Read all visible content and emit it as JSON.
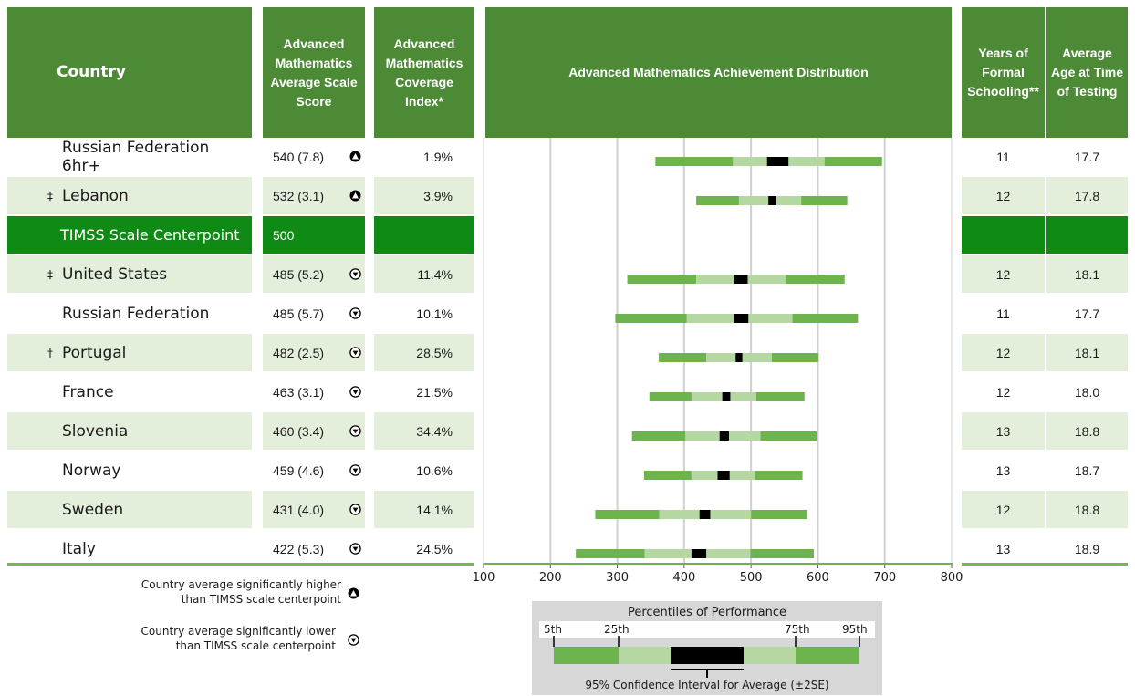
{
  "headers": {
    "country": "Country",
    "score": [
      "Advanced",
      "Mathematics",
      "Average Scale",
      "Score"
    ],
    "coverage": [
      "Advanced",
      "Mathematics",
      "Coverage",
      "Index*"
    ],
    "distribution": "Advanced Mathematics Achievement Distribution",
    "years": [
      "Years of",
      "Formal",
      "Schooling**"
    ],
    "age": [
      "Average",
      "Age at Time",
      "of Testing"
    ]
  },
  "rows": [
    {
      "mark": "",
      "country": "Russian Federation 6hr+",
      "score": "540 (7.8)",
      "sig": "higher",
      "coverage": "1.9%",
      "years": "11",
      "age": "17.7"
    },
    {
      "mark": "‡",
      "country": "Lebanon",
      "score": "532 (3.1)",
      "sig": "higher",
      "coverage": "3.9%",
      "years": "12",
      "age": "17.8"
    },
    {
      "mark": "",
      "country": "TIMSS Scale Centerpoint",
      "score": "500",
      "sig": "",
      "coverage": "",
      "years": "",
      "age": "",
      "centerpoint": true
    },
    {
      "mark": "‡",
      "country": "United States",
      "score": "485 (5.2)",
      "sig": "lower",
      "coverage": "11.4%",
      "years": "12",
      "age": "18.1"
    },
    {
      "mark": "",
      "country": "Russian Federation",
      "score": "485 (5.7)",
      "sig": "lower",
      "coverage": "10.1%",
      "years": "11",
      "age": "17.7"
    },
    {
      "mark": "†",
      "country": "Portugal",
      "score": "482 (2.5)",
      "sig": "lower",
      "coverage": "28.5%",
      "years": "12",
      "age": "18.1"
    },
    {
      "mark": "",
      "country": "France",
      "score": "463 (3.1)",
      "sig": "lower",
      "coverage": "21.5%",
      "years": "12",
      "age": "18.0"
    },
    {
      "mark": "",
      "country": "Slovenia",
      "score": "460 (3.4)",
      "sig": "lower",
      "coverage": "34.4%",
      "years": "13",
      "age": "18.8"
    },
    {
      "mark": "",
      "country": "Norway",
      "score": "459 (4.6)",
      "sig": "lower",
      "coverage": "10.6%",
      "years": "13",
      "age": "18.7"
    },
    {
      "mark": "",
      "country": "Sweden",
      "score": "431 (4.0)",
      "sig": "lower",
      "coverage": "14.1%",
      "years": "12",
      "age": "18.8"
    },
    {
      "mark": "",
      "country": "Italy",
      "score": "422 (5.3)",
      "sig": "lower",
      "coverage": "24.5%",
      "years": "13",
      "age": "18.9"
    }
  ],
  "legend": {
    "higher": [
      "Country average significantly higher",
      "than TIMSS scale centerpoint"
    ],
    "lower": [
      "Country average significantly lower",
      "than TIMSS scale centerpoint"
    ]
  },
  "percentile_legend": {
    "title": "Percentiles of Performance",
    "labels": [
      "5th",
      "25th",
      "75th",
      "95th"
    ],
    "ci_label": "95% Confidence Interval for Average (±2SE)"
  },
  "colors": {
    "header": "#4d8a36",
    "outer": "#6db44e",
    "inner": "#b5d8a2",
    "ci": "#000000",
    "center_row": "#0f8a14",
    "shade": "#e3eedb"
  },
  "chart_data": {
    "type": "bar",
    "title": "Advanced Mathematics Achievement Distribution",
    "xlim": [
      100,
      800
    ],
    "xticks": [
      100,
      200,
      300,
      400,
      500,
      600,
      700,
      800
    ],
    "grid": true,
    "series": [
      {
        "category": "Russian Federation 6hr+",
        "p5": 357,
        "p25": 473,
        "ci_low": 524,
        "ci_high": 556,
        "p75": 610,
        "p95": 696
      },
      {
        "category": "Lebanon",
        "p5": 418,
        "p25": 482,
        "ci_low": 526,
        "ci_high": 538,
        "p75": 575,
        "p95": 644
      },
      {
        "category": "United States",
        "p5": 315,
        "p25": 418,
        "ci_low": 475,
        "ci_high": 495,
        "p75": 552,
        "p95": 640
      },
      {
        "category": "Russian Federation",
        "p5": 297,
        "p25": 404,
        "ci_low": 474,
        "ci_high": 496,
        "p75": 562,
        "p95": 660
      },
      {
        "category": "Portugal",
        "p5": 362,
        "p25": 433,
        "ci_low": 477,
        "ci_high": 487,
        "p75": 531,
        "p95": 601
      },
      {
        "category": "France",
        "p5": 348,
        "p25": 411,
        "ci_low": 457,
        "ci_high": 469,
        "p75": 508,
        "p95": 580
      },
      {
        "category": "Slovenia",
        "p5": 322,
        "p25": 402,
        "ci_low": 453,
        "ci_high": 467,
        "p75": 514,
        "p95": 598
      },
      {
        "category": "Norway",
        "p5": 340,
        "p25": 411,
        "ci_low": 450,
        "ci_high": 468,
        "p75": 506,
        "p95": 577
      },
      {
        "category": "Sweden",
        "p5": 267,
        "p25": 363,
        "ci_low": 423,
        "ci_high": 439,
        "p75": 500,
        "p95": 584
      },
      {
        "category": "Italy",
        "p5": 238,
        "p25": 341,
        "ci_low": 411,
        "ci_high": 433,
        "p75": 499,
        "p95": 594
      }
    ]
  }
}
